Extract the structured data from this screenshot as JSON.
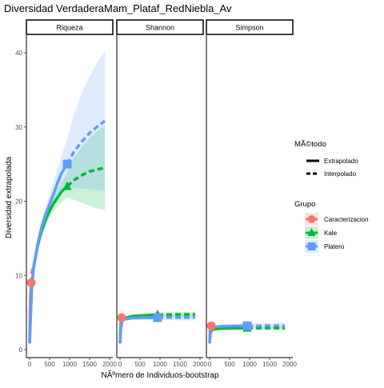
{
  "chart_data": {
    "type": "line",
    "title": "Diversidad VerdaderaMam_Plataf_RedNiebla_Av",
    "xlabel": "NÃºmero de Individuos-bootstrap",
    "ylabel": "Diversidad extrapolada",
    "panels": [
      "Riqueza",
      "Shannon",
      "Simpson"
    ],
    "xlim": [
      0,
      2000
    ],
    "ylim": [
      0,
      42
    ],
    "x_ticks": [
      0,
      500,
      1000,
      1500,
      2000
    ],
    "y_ticks": [
      0,
      10,
      20,
      30,
      40
    ],
    "legend_position": "right",
    "linetype_legend": {
      "title": "MÃ©todo",
      "entries": [
        "Extrapolado",
        "Interpolado"
      ]
    },
    "color_legend": {
      "title": "Grupo",
      "entries": [
        {
          "name": "Caracterizacion",
          "color": "#F8766D",
          "shape": "circle"
        },
        {
          "name": "Kale",
          "color": "#00BA38",
          "shape": "triangle"
        },
        {
          "name": "Platero",
          "color": "#619CFF",
          "shape": "square"
        }
      ]
    },
    "series": [
      {
        "name": "Caracterizacion",
        "color": "#F8766D",
        "shape": "circle",
        "observed": {
          "Riqueza": [
            40,
            9
          ],
          "Shannon": [
            40,
            4.3
          ],
          "Simpson": [
            40,
            3.2
          ]
        },
        "curves": {
          "Riqueza": {
            "interp": [
              [
                1,
                1
              ],
              [
                10,
                5
              ],
              [
                20,
                7
              ],
              [
                40,
                9
              ]
            ],
            "extrap": [
              [
                40,
                9
              ],
              [
                60,
                10.5
              ],
              [
                80,
                11.2
              ]
            ],
            "ci": [
              [
                1,
                0.8,
                1.2
              ],
              [
                20,
                6,
                8
              ],
              [
                40,
                8,
                10
              ],
              [
                80,
                9.5,
                13
              ]
            ]
          },
          "Shannon": {
            "interp": [
              [
                1,
                1
              ],
              [
                10,
                3
              ],
              [
                20,
                3.8
              ],
              [
                40,
                4.3
              ]
            ],
            "extrap": [
              [
                40,
                4.3
              ],
              [
                60,
                4.5
              ],
              [
                80,
                4.6
              ]
            ],
            "ci": [
              [
                1,
                1,
                1
              ],
              [
                20,
                3.3,
                4.3
              ],
              [
                40,
                3.7,
                5
              ],
              [
                80,
                3.6,
                5.8
              ]
            ]
          },
          "Simpson": {
            "interp": [
              [
                1,
                1
              ],
              [
                10,
                2.5
              ],
              [
                20,
                3.0
              ],
              [
                40,
                3.2
              ]
            ],
            "extrap": [
              [
                40,
                3.2
              ],
              [
                60,
                3.2
              ],
              [
                80,
                3.3
              ]
            ],
            "ci": [
              [
                1,
                1,
                1
              ],
              [
                20,
                2.7,
                3.3
              ],
              [
                40,
                2.8,
                3.6
              ],
              [
                80,
                2.8,
                3.8
              ]
            ]
          }
        }
      },
      {
        "name": "Kale",
        "color": "#00BA38",
        "shape": "triangle",
        "observed": {
          "Riqueza": [
            940,
            22
          ],
          "Shannon": [
            940,
            4.7
          ],
          "Simpson": [
            940,
            2.9
          ]
        },
        "curves": {
          "Riqueza": {
            "interp": [
              [
                1,
                1
              ],
              [
                50,
                8
              ],
              [
                100,
                11
              ],
              [
                200,
                14
              ],
              [
                300,
                16
              ],
              [
                400,
                17.5
              ],
              [
                500,
                18.7
              ],
              [
                600,
                19.7
              ],
              [
                700,
                20.5
              ],
              [
                800,
                21.3
              ],
              [
                940,
                22
              ]
            ],
            "extrap": [
              [
                940,
                22
              ],
              [
                1100,
                22.8
              ],
              [
                1300,
                23.5
              ],
              [
                1500,
                24
              ],
              [
                1700,
                24.3
              ],
              [
                1880,
                24.5
              ]
            ],
            "ci": [
              [
                1,
                1,
                1
              ],
              [
                100,
                10.5,
                11.5
              ],
              [
                300,
                15.3,
                16.7
              ],
              [
                500,
                17.8,
                19.6
              ],
              [
                700,
                19.3,
                21.7
              ],
              [
                940,
                20.5,
                23.8
              ],
              [
                1100,
                20.2,
                25.8
              ],
              [
                1300,
                19.8,
                27.3
              ],
              [
                1500,
                19.4,
                28.5
              ],
              [
                1700,
                19,
                29.5
              ],
              [
                1880,
                18.8,
                30.2
              ]
            ]
          },
          "Shannon": {
            "interp": [
              [
                1,
                1
              ],
              [
                20,
                3
              ],
              [
                50,
                3.8
              ],
              [
                100,
                4.2
              ],
              [
                300,
                4.5
              ],
              [
                600,
                4.6
              ],
              [
                940,
                4.7
              ]
            ],
            "extrap": [
              [
                940,
                4.7
              ],
              [
                1200,
                4.72
              ],
              [
                1500,
                4.73
              ],
              [
                1880,
                4.74
              ]
            ],
            "ci": [
              [
                1,
                1,
                1
              ],
              [
                100,
                4.0,
                4.4
              ],
              [
                300,
                4.3,
                4.7
              ],
              [
                940,
                4.4,
                5.0
              ],
              [
                1880,
                4.3,
                5.1
              ]
            ]
          },
          "Simpson": {
            "interp": [
              [
                1,
                1
              ],
              [
                20,
                2.3
              ],
              [
                50,
                2.6
              ],
              [
                100,
                2.75
              ],
              [
                300,
                2.85
              ],
              [
                600,
                2.88
              ],
              [
                940,
                2.9
              ]
            ],
            "extrap": [
              [
                940,
                2.9
              ],
              [
                1200,
                2.9
              ],
              [
                1500,
                2.9
              ],
              [
                1880,
                2.9
              ]
            ],
            "ci": [
              [
                1,
                1,
                1
              ],
              [
                100,
                2.6,
                2.9
              ],
              [
                940,
                2.7,
                3.1
              ],
              [
                1880,
                2.6,
                3.2
              ]
            ]
          }
        }
      },
      {
        "name": "Platero",
        "color": "#619CFF",
        "shape": "square",
        "observed": {
          "Riqueza": [
            940,
            25
          ],
          "Shannon": [
            940,
            4.3
          ],
          "Simpson": [
            940,
            3.2
          ]
        },
        "curves": {
          "Riqueza": {
            "interp": [
              [
                1,
                1
              ],
              [
                50,
                8
              ],
              [
                100,
                11
              ],
              [
                200,
                14.2
              ],
              [
                300,
                16.5
              ],
              [
                400,
                18.2
              ],
              [
                500,
                19.6
              ],
              [
                600,
                21
              ],
              [
                700,
                22.5
              ],
              [
                800,
                23.8
              ],
              [
                940,
                25
              ]
            ],
            "extrap": [
              [
                940,
                25
              ],
              [
                1100,
                26.6
              ],
              [
                1300,
                28
              ],
              [
                1500,
                29.2
              ],
              [
                1700,
                30.1
              ],
              [
                1880,
                30.8
              ]
            ],
            "ci": [
              [
                1,
                1,
                1
              ],
              [
                100,
                10.3,
                11.7
              ],
              [
                300,
                15.5,
                17.5
              ],
              [
                500,
                18.3,
                21
              ],
              [
                700,
                20.5,
                24.5
              ],
              [
                940,
                21.8,
                28.4
              ],
              [
                1100,
                21.8,
                31.5
              ],
              [
                1300,
                21.7,
                34.5
              ],
              [
                1500,
                21.6,
                36.8
              ],
              [
                1700,
                21.5,
                38.8
              ],
              [
                1880,
                21.4,
                40.3
              ]
            ]
          },
          "Shannon": {
            "interp": [
              [
                1,
                1
              ],
              [
                20,
                3
              ],
              [
                50,
                3.8
              ],
              [
                100,
                4.1
              ],
              [
                300,
                4.25
              ],
              [
                600,
                4.3
              ],
              [
                940,
                4.3
              ]
            ],
            "extrap": [
              [
                940,
                4.3
              ],
              [
                1200,
                4.32
              ],
              [
                1500,
                4.33
              ],
              [
                1880,
                4.35
              ]
            ],
            "ci": [
              [
                1,
                1,
                1
              ],
              [
                100,
                3.8,
                4.4
              ],
              [
                300,
                4.0,
                4.5
              ],
              [
                940,
                4.0,
                4.7
              ],
              [
                1880,
                3.9,
                4.8
              ]
            ]
          },
          "Simpson": {
            "interp": [
              [
                1,
                1
              ],
              [
                20,
                2.5
              ],
              [
                50,
                2.9
              ],
              [
                100,
                3.05
              ],
              [
                300,
                3.15
              ],
              [
                600,
                3.2
              ],
              [
                940,
                3.2
              ]
            ],
            "extrap": [
              [
                940,
                3.2
              ],
              [
                1200,
                3.2
              ],
              [
                1500,
                3.22
              ],
              [
                1880,
                3.22
              ]
            ],
            "ci": [
              [
                1,
                1,
                1
              ],
              [
                100,
                2.9,
                3.2
              ],
              [
                940,
                3.0,
                3.5
              ],
              [
                1880,
                2.9,
                3.6
              ]
            ]
          }
        }
      }
    ]
  }
}
